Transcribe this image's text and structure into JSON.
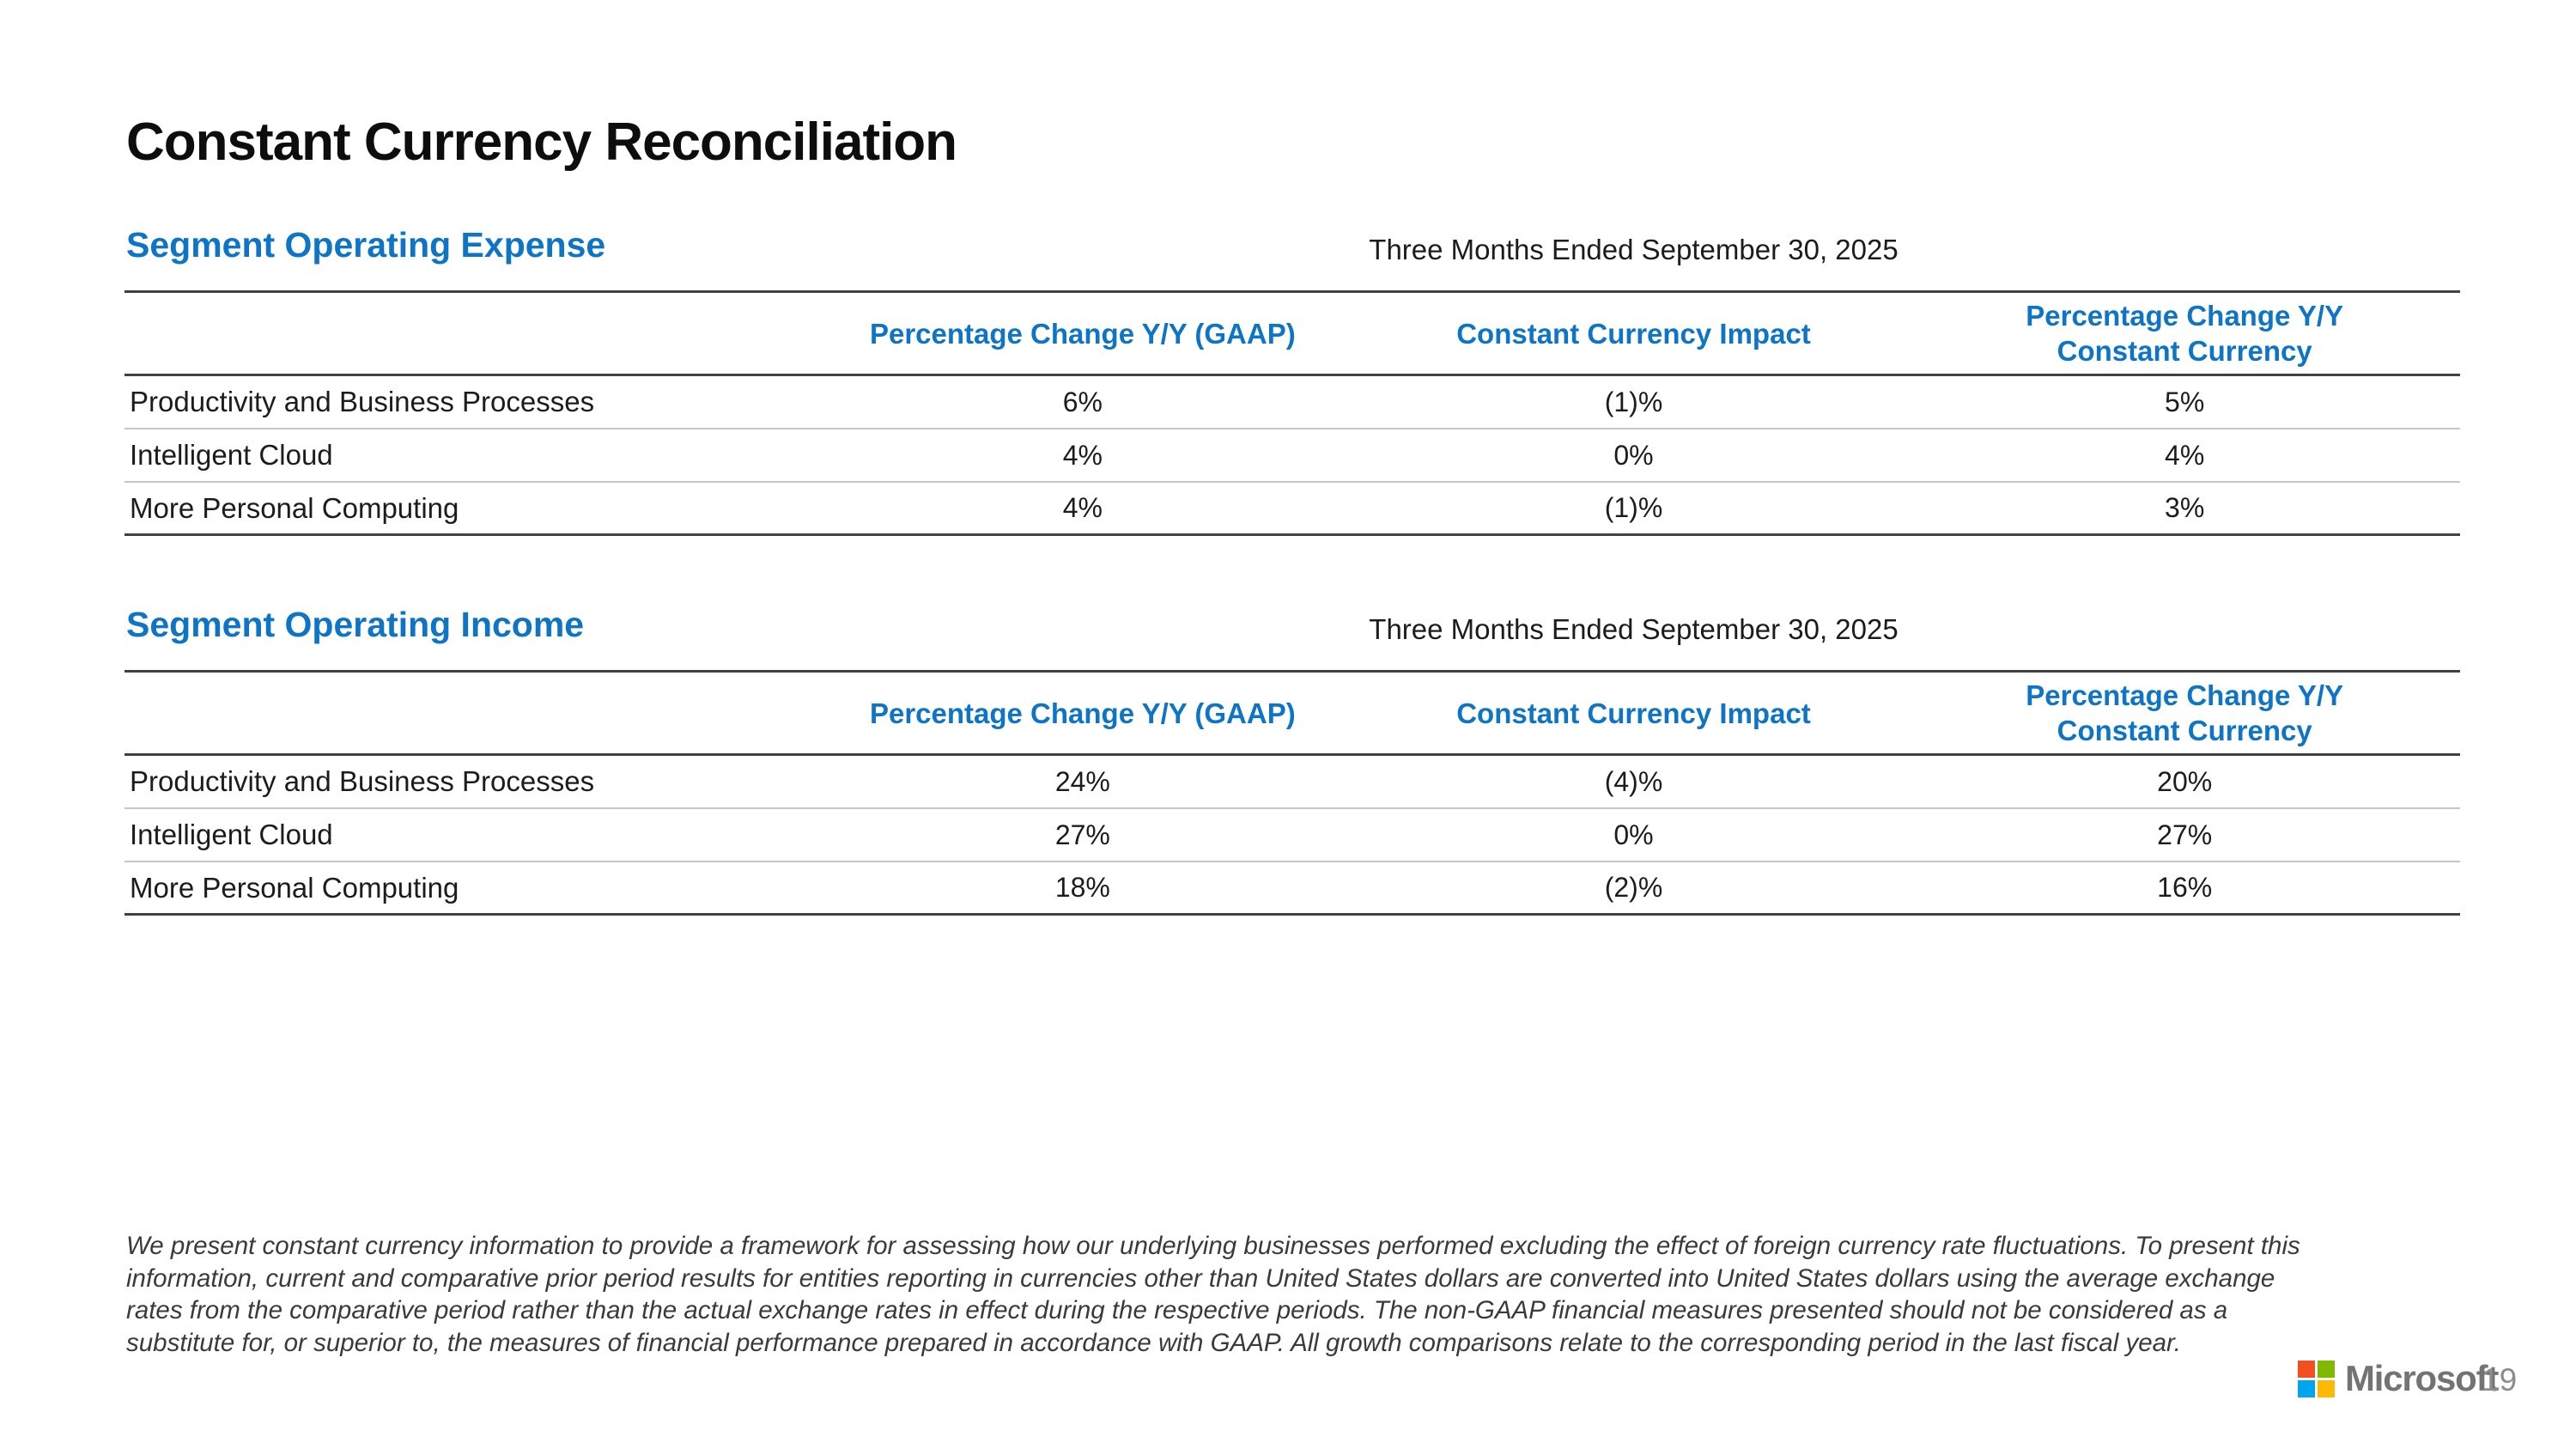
{
  "page": {
    "title": "Constant Currency Reconciliation"
  },
  "colors": {
    "accent_blue": "#0e74c6",
    "logo_red": "#f25022",
    "logo_green": "#7fba00",
    "logo_blue": "#00a4ef",
    "logo_yellow": "#ffb900"
  },
  "sections": [
    {
      "heading": "Segment Operating Expense",
      "period": "Three Months Ended September 30, 2025",
      "columns": {
        "gaap": "Percentage Change Y/Y (GAAP)",
        "impact": "Constant Currency Impact",
        "cc_line1": "Percentage Change Y/Y",
        "cc_line2": "Constant Currency"
      },
      "rows": [
        {
          "label": "Productivity and Business Processes",
          "gaap": "6%",
          "impact": "(1)%",
          "cc": "5%"
        },
        {
          "label": "Intelligent Cloud",
          "gaap": "4%",
          "impact": "0%",
          "cc": "4%"
        },
        {
          "label": "More Personal Computing",
          "gaap": "4%",
          "impact": "(1)%",
          "cc": "3%"
        }
      ]
    },
    {
      "heading": "Segment Operating Income",
      "period": "Three Months Ended September 30, 2025",
      "columns": {
        "gaap": "Percentage Change Y/Y (GAAP)",
        "impact": "Constant Currency Impact",
        "cc_line1": "Percentage Change Y/Y",
        "cc_line2": "Constant Currency"
      },
      "rows": [
        {
          "label": "Productivity and Business Processes",
          "gaap": "24%",
          "impact": "(4)%",
          "cc": "20%"
        },
        {
          "label": "Intelligent Cloud",
          "gaap": "27%",
          "impact": "0%",
          "cc": "27%"
        },
        {
          "label": "More Personal Computing",
          "gaap": "18%",
          "impact": "(2)%",
          "cc": "16%"
        }
      ]
    }
  ],
  "footnote": {
    "text": "We present constant currency information to provide a framework for assessing how our underlying businesses performed excluding the effect of foreign currency rate fluctuations. To present this information, current and comparative prior period results for entities reporting in currencies other than United States dollars are converted into United States dollars using the average exchange rates from the comparative period rather than the actual exchange rates in effect during the respective periods. The non-GAAP financial measures presented should not be considered as a substitute for, or superior to, the measures of financial performance prepared in accordance with GAAP. All growth comparisons relate to the corresponding period in the last fiscal year."
  },
  "footer": {
    "brand": "Microsoft",
    "page_number": "19"
  }
}
